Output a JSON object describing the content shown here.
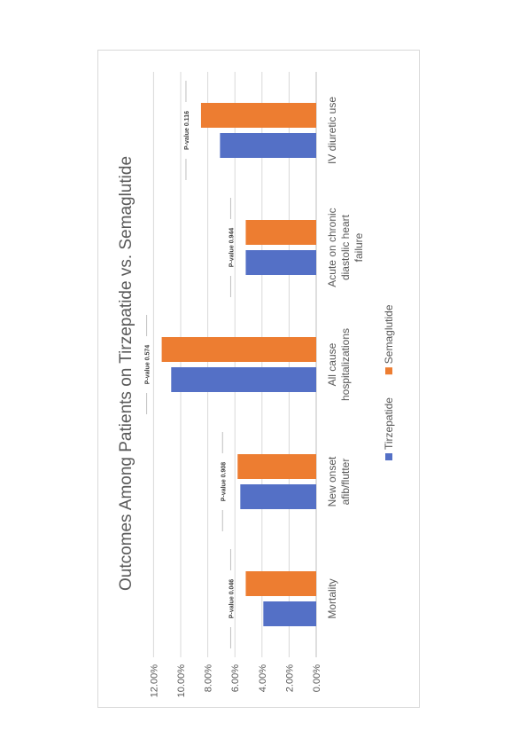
{
  "chart_data": {
    "type": "bar",
    "orientation": "rotated-90-ccw",
    "title": "Outcomes Among Patients on Tirzepatide vs. Semaglutide",
    "categories": [
      [
        "Mortality"
      ],
      [
        "New onset",
        "afib/flutter"
      ],
      [
        "All cause",
        "hospitalizations"
      ],
      [
        "Acute on chronic",
        "diastolic heart",
        "failure"
      ],
      [
        "IV diuretic use"
      ]
    ],
    "series": [
      {
        "name": "Tirzepatide",
        "color": "#5470c6",
        "values": [
          3.9,
          5.6,
          10.7,
          5.2,
          7.1
        ]
      },
      {
        "name": "Semaglutide",
        "color": "#ed7d31",
        "values": [
          5.2,
          5.8,
          11.4,
          5.2,
          8.5
        ]
      }
    ],
    "annotations": [
      "P-value 0.046",
      "P-value 0.908",
      "P-value 0.574",
      "P-value 0.944",
      "P-value 0.116"
    ],
    "ylim": [
      0,
      12
    ],
    "yticks": [
      "0.00%",
      "2.00%",
      "4.00%",
      "6.00%",
      "8.00%",
      "10.00%",
      "12.00%"
    ],
    "grid": true,
    "legend": "bottom"
  }
}
